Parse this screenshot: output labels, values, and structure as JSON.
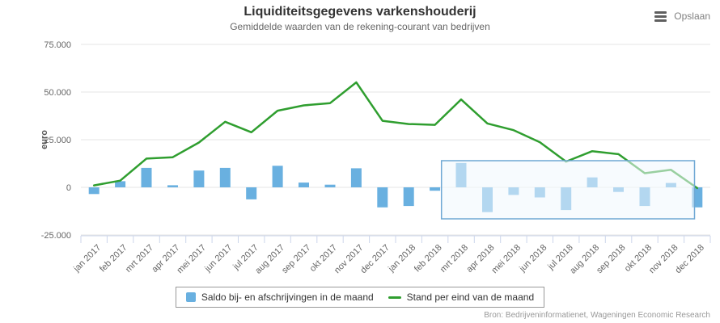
{
  "header": {
    "title": "Liquiditeitsgegevens varkenshouderij",
    "subtitle": "Gemiddelde waarden van de rekening-courant van bedrijven",
    "menu_label": "Opslaan"
  },
  "legend": {
    "items": [
      {
        "label": "Saldo bij- en afschrijvingen in de maand",
        "type": "bar",
        "color": "#69b0e0"
      },
      {
        "label": "Stand per eind van de maand",
        "type": "line",
        "color": "#2f9e2f"
      }
    ]
  },
  "credits": "Bron: Bedrijveninformatienet, Wageningen Economic Research",
  "colors": {
    "bar": "#69b0e0",
    "line": "#2f9e2f",
    "grid": "#e6e6e6",
    "axis": "#ccd6eb",
    "text_dark": "#333333",
    "text_muted": "#666666",
    "credits_text": "#999999",
    "selection_border": "#6fa8d4",
    "selection_fill": "rgba(240,248,253,0.55)"
  },
  "chart_data": {
    "type": "bar",
    "title": "Liquiditeitsgegevens varkenshouderij",
    "subtitle": "Gemiddelde waarden van de rekening-courant van bedrijven",
    "xlabel": "",
    "ylabel": "euro",
    "ylim": [
      -25000,
      75000
    ],
    "grid": true,
    "legend_position": "bottom",
    "categories": [
      "jan 2017",
      "feb 2017",
      "mrt 2017",
      "apr 2017",
      "mei 2017",
      "jun 2017",
      "jul 2017",
      "aug 2017",
      "sep 2017",
      "okt 2017",
      "nov 2017",
      "dec 2017",
      "jan 2018",
      "feb 2018",
      "mrt 2018",
      "apr 2018",
      "mei 2018",
      "jun 2018",
      "jul 2018",
      "aug 2018",
      "sep 2018",
      "okt 2018",
      "nov 2018",
      "dec 2018"
    ],
    "yticks": [
      {
        "value": -25000,
        "label": "-25.000"
      },
      {
        "value": 0,
        "label": "0"
      },
      {
        "value": 25000,
        "label": "25.000"
      },
      {
        "value": 50000,
        "label": "50.000"
      },
      {
        "value": 75000,
        "label": "75.000"
      }
    ],
    "series": [
      {
        "name": "Saldo bij- en afschrijvingen in de maand",
        "type": "bar",
        "color": "#69b0e0",
        "values": [
          -3500,
          3200,
          10200,
          1100,
          8800,
          10200,
          -6300,
          11300,
          2500,
          1400,
          10000,
          -10500,
          -9800,
          -1800,
          12800,
          -13000,
          -4000,
          -5300,
          -11900,
          5200,
          -2400,
          -9800,
          2300,
          -10500
        ]
      },
      {
        "name": "Stand per eind van de maand",
        "type": "line",
        "color": "#2f9e2f",
        "values": [
          1000,
          3500,
          15100,
          15800,
          23500,
          34400,
          28900,
          40200,
          43000,
          44200,
          55100,
          34900,
          33200,
          32800,
          46100,
          33500,
          30000,
          23700,
          13500,
          19000,
          17400,
          7400,
          9200,
          -400
        ]
      }
    ],
    "selection": {
      "from_index": 13.75,
      "to_index": 23.4,
      "value_top": 14000,
      "value_bottom": -16500
    }
  }
}
